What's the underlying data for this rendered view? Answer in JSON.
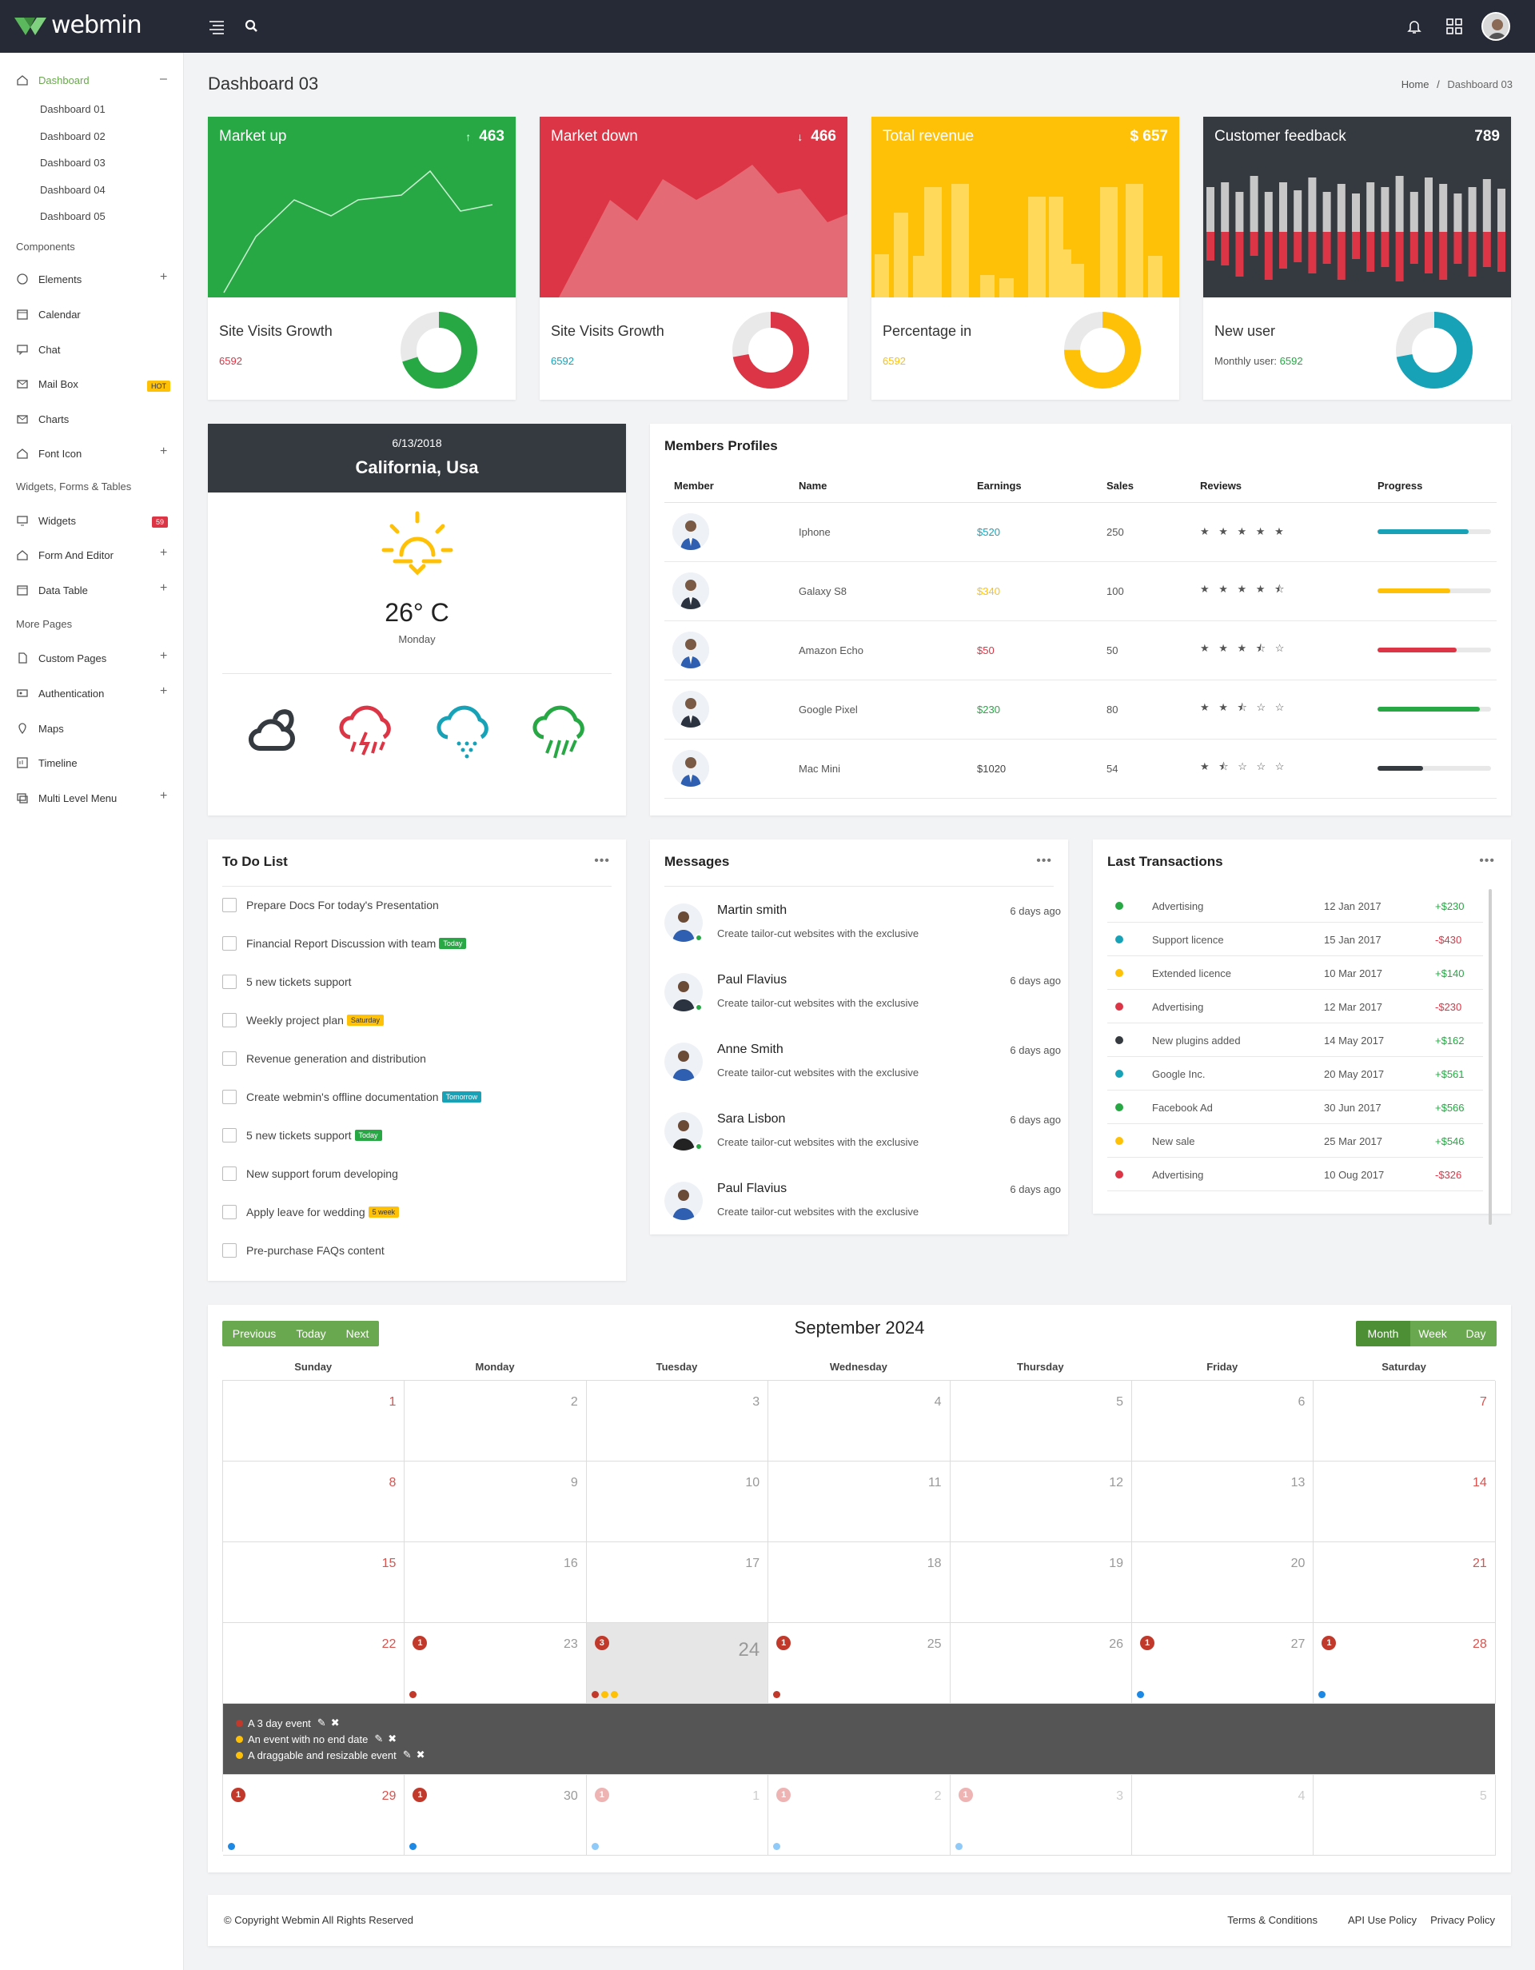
{
  "app": {
    "name": "webmin"
  },
  "sidebar": {
    "dashboard": "Dashboard",
    "dash_items": [
      "Dashboard 01",
      "Dashboard 02",
      "Dashboard 03",
      "Dashboard 04",
      "Dashboard 05"
    ],
    "sec_components": "Components",
    "elements": "Elements",
    "calendar": "Calendar",
    "chat": "Chat",
    "mailbox": "Mail Box",
    "mailbox_badge": "HOT",
    "charts": "Charts",
    "fonticon": "Font Icon",
    "sec_widgets": "Widgets, Forms & Tables",
    "widgets": "Widgets",
    "widgets_badge": "59",
    "form": "Form And Editor",
    "datatable": "Data Table",
    "sec_more": "More Pages",
    "custom": "Custom Pages",
    "auth": "Authentication",
    "maps": "Maps",
    "timeline": "Timeline",
    "multi": "Multi Level Menu"
  },
  "page": {
    "title": "Dashboard 03",
    "crumb_home": "Home",
    "crumb_sep": "/",
    "crumb_current": "Dashboard 03"
  },
  "stats": [
    {
      "title": "Market up",
      "value": "463",
      "arrow": "↑",
      "label": "Site Visits Growth",
      "sub": "6592",
      "color": "#28a745",
      "sub_color": "#dc3545",
      "pct": 0.7
    },
    {
      "title": "Market down",
      "value": "466",
      "arrow": "↓",
      "label": "Site Visits Growth",
      "sub": "6592",
      "color": "#dc3545",
      "sub_color": "#17a2b8",
      "pct": 0.72
    },
    {
      "title": "Total revenue",
      "value": "$ 657",
      "arrow": "",
      "label": "Percentage in",
      "sub": "6592",
      "color": "#ffc107",
      "sub_color": "#ffc107",
      "pct": 0.75
    },
    {
      "title": "Customer feedback",
      "value": "789",
      "arrow": "",
      "label": "New user",
      "sub_prefix": "Monthly user:",
      "sub": "6592",
      "color": "#343a40",
      "sub_color": "#28a745",
      "pct": 0.72
    }
  ],
  "weather": {
    "date": "6/13/2018",
    "location": "California, Usa",
    "temp": "26° C",
    "day": "Monday"
  },
  "members": {
    "title": "Members Profiles",
    "cols": [
      "Member",
      "Name",
      "Earnings",
      "Sales",
      "Reviews",
      "Progress"
    ],
    "rows": [
      {
        "name": "Iphone",
        "earn": "$520",
        "earn_color": "#17a2b8",
        "sales": "250",
        "stars": "★ ★ ★ ★ ★",
        "prog": 0.8,
        "pc": "#17a2b8"
      },
      {
        "name": "Galaxy S8",
        "earn": "$340",
        "earn_color": "#ffc107",
        "sales": "100",
        "stars": "★ ★ ★ ★ ⯪",
        "prog": 0.64,
        "pc": "#ffc107"
      },
      {
        "name": "Amazon Echo",
        "earn": "$50",
        "earn_color": "#dc3545",
        "sales": "50",
        "stars": "★ ★ ★ ⯪ ☆",
        "prog": 0.7,
        "pc": "#dc3545"
      },
      {
        "name": "Google Pixel",
        "earn": "$230",
        "earn_color": "#28a745",
        "sales": "80",
        "stars": "★ ★ ⯪ ☆ ☆",
        "prog": 0.9,
        "pc": "#28a745"
      },
      {
        "name": "Mac Mini",
        "earn": "$1020",
        "earn_color": "#444444",
        "sales": "54",
        "stars": "★ ⯪ ☆ ☆ ☆",
        "prog": 0.4,
        "pc": "#343a40"
      }
    ]
  },
  "todo": {
    "title": "To Do List",
    "more": "•••",
    "items": [
      {
        "text": "Prepare Docs For today's Presentation",
        "tag": "",
        "tc": ""
      },
      {
        "text": "Financial Report Discussion with team",
        "tag": "Today",
        "tc": "#28a745"
      },
      {
        "text": "5 new tickets support",
        "tag": "",
        "tc": ""
      },
      {
        "text": "Weekly project plan",
        "tag": "Saturday",
        "tc": "#ffc107"
      },
      {
        "text": "Revenue generation and distribution",
        "tag": "",
        "tc": ""
      },
      {
        "text": "Create webmin's offline documentation",
        "tag": "Tomorrow",
        "tc": "#17a2b8"
      },
      {
        "text": "5 new tickets support",
        "tag": "Today",
        "tc": "#28a745"
      },
      {
        "text": "New support forum developing",
        "tag": "",
        "tc": ""
      },
      {
        "text": "Apply leave for wedding",
        "tag": "5 week",
        "tc": "#ffc107"
      },
      {
        "text": "Pre-purchase FAQs content",
        "tag": "",
        "tc": ""
      }
    ]
  },
  "messages": {
    "title": "Messages",
    "more": "•••",
    "items": [
      {
        "name": "Martin smith",
        "text": "Create tailor-cut websites with the exclusive",
        "time": "6 days ago",
        "online": true
      },
      {
        "name": "Paul Flavius",
        "text": "Create tailor-cut websites with the exclusive",
        "time": "6 days ago",
        "online": true
      },
      {
        "name": "Anne Smith",
        "text": "Create tailor-cut websites with the exclusive",
        "time": "6 days ago",
        "online": false
      },
      {
        "name": "Sara Lisbon",
        "text": "Create tailor-cut websites with the exclusive",
        "time": "6 days ago",
        "online": true
      },
      {
        "name": "Paul Flavius",
        "text": "Create tailor-cut websites with the exclusive",
        "time": "6 days ago",
        "online": false
      }
    ]
  },
  "transactions": {
    "title": "Last Transactions",
    "more": "•••",
    "items": [
      {
        "label": "Advertising",
        "date": "12 Jan 2017",
        "amount": "+$230",
        "dc": "#28a745",
        "ac": "#28a745"
      },
      {
        "label": "Support licence",
        "date": "15 Jan 2017",
        "amount": "-$430",
        "dc": "#17a2b8",
        "ac": "#dc3545"
      },
      {
        "label": "Extended licence",
        "date": "10 Mar 2017",
        "amount": "+$140",
        "dc": "#ffc107",
        "ac": "#28a745"
      },
      {
        "label": "Advertising",
        "date": "12 Mar 2017",
        "amount": "-$230",
        "dc": "#dc3545",
        "ac": "#dc3545"
      },
      {
        "label": "New plugins added",
        "date": "14 May 2017",
        "amount": "+$162",
        "dc": "#343a40",
        "ac": "#28a745"
      },
      {
        "label": "Google Inc.",
        "date": "20 May 2017",
        "amount": "+$561",
        "dc": "#17a2b8",
        "ac": "#28a745"
      },
      {
        "label": "Facebook Ad",
        "date": "30 Jun 2017",
        "amount": "+$566",
        "dc": "#28a745",
        "ac": "#28a745"
      },
      {
        "label": "New sale",
        "date": "25 Mar 2017",
        "amount": "+$546",
        "dc": "#ffc107",
        "ac": "#28a745"
      },
      {
        "label": "Advertising",
        "date": "10 Oug 2017",
        "amount": "-$326",
        "dc": "#dc3545",
        "ac": "#dc3545"
      }
    ]
  },
  "calendar": {
    "title": "September 2024",
    "nav": [
      "Previous",
      "Today",
      "Next"
    ],
    "views": [
      "Month",
      "Week",
      "Day"
    ],
    "days": [
      "Sunday",
      "Monday",
      "Tuesday",
      "Wednesday",
      "Thursday",
      "Friday",
      "Saturday"
    ],
    "weeks": [
      [
        "1",
        "2",
        "3",
        "4",
        "5",
        "6",
        "7"
      ],
      [
        "8",
        "9",
        "10",
        "11",
        "12",
        "13",
        "14"
      ],
      [
        "15",
        "16",
        "17",
        "18",
        "19",
        "20",
        "21"
      ],
      [
        "22",
        "23",
        "24",
        "25",
        "26",
        "27",
        "28"
      ],
      [
        "29",
        "30",
        "1",
        "2",
        "3",
        "4",
        "5"
      ]
    ],
    "expanded_events": [
      "A 3 day event",
      "An event with no end date",
      "A draggable and resizable event"
    ],
    "event_counts": {
      "w4": [
        "",
        "1",
        "3",
        "1",
        "",
        "1",
        "1"
      ],
      "w5": [
        "1",
        "1",
        "1",
        "1",
        "1",
        "",
        ""
      ]
    }
  },
  "footer": {
    "copyright": "© Copyright Webmin All Rights Reserved",
    "links": [
      "Terms & Conditions",
      "API Use Policy",
      "Privacy Policy"
    ]
  }
}
